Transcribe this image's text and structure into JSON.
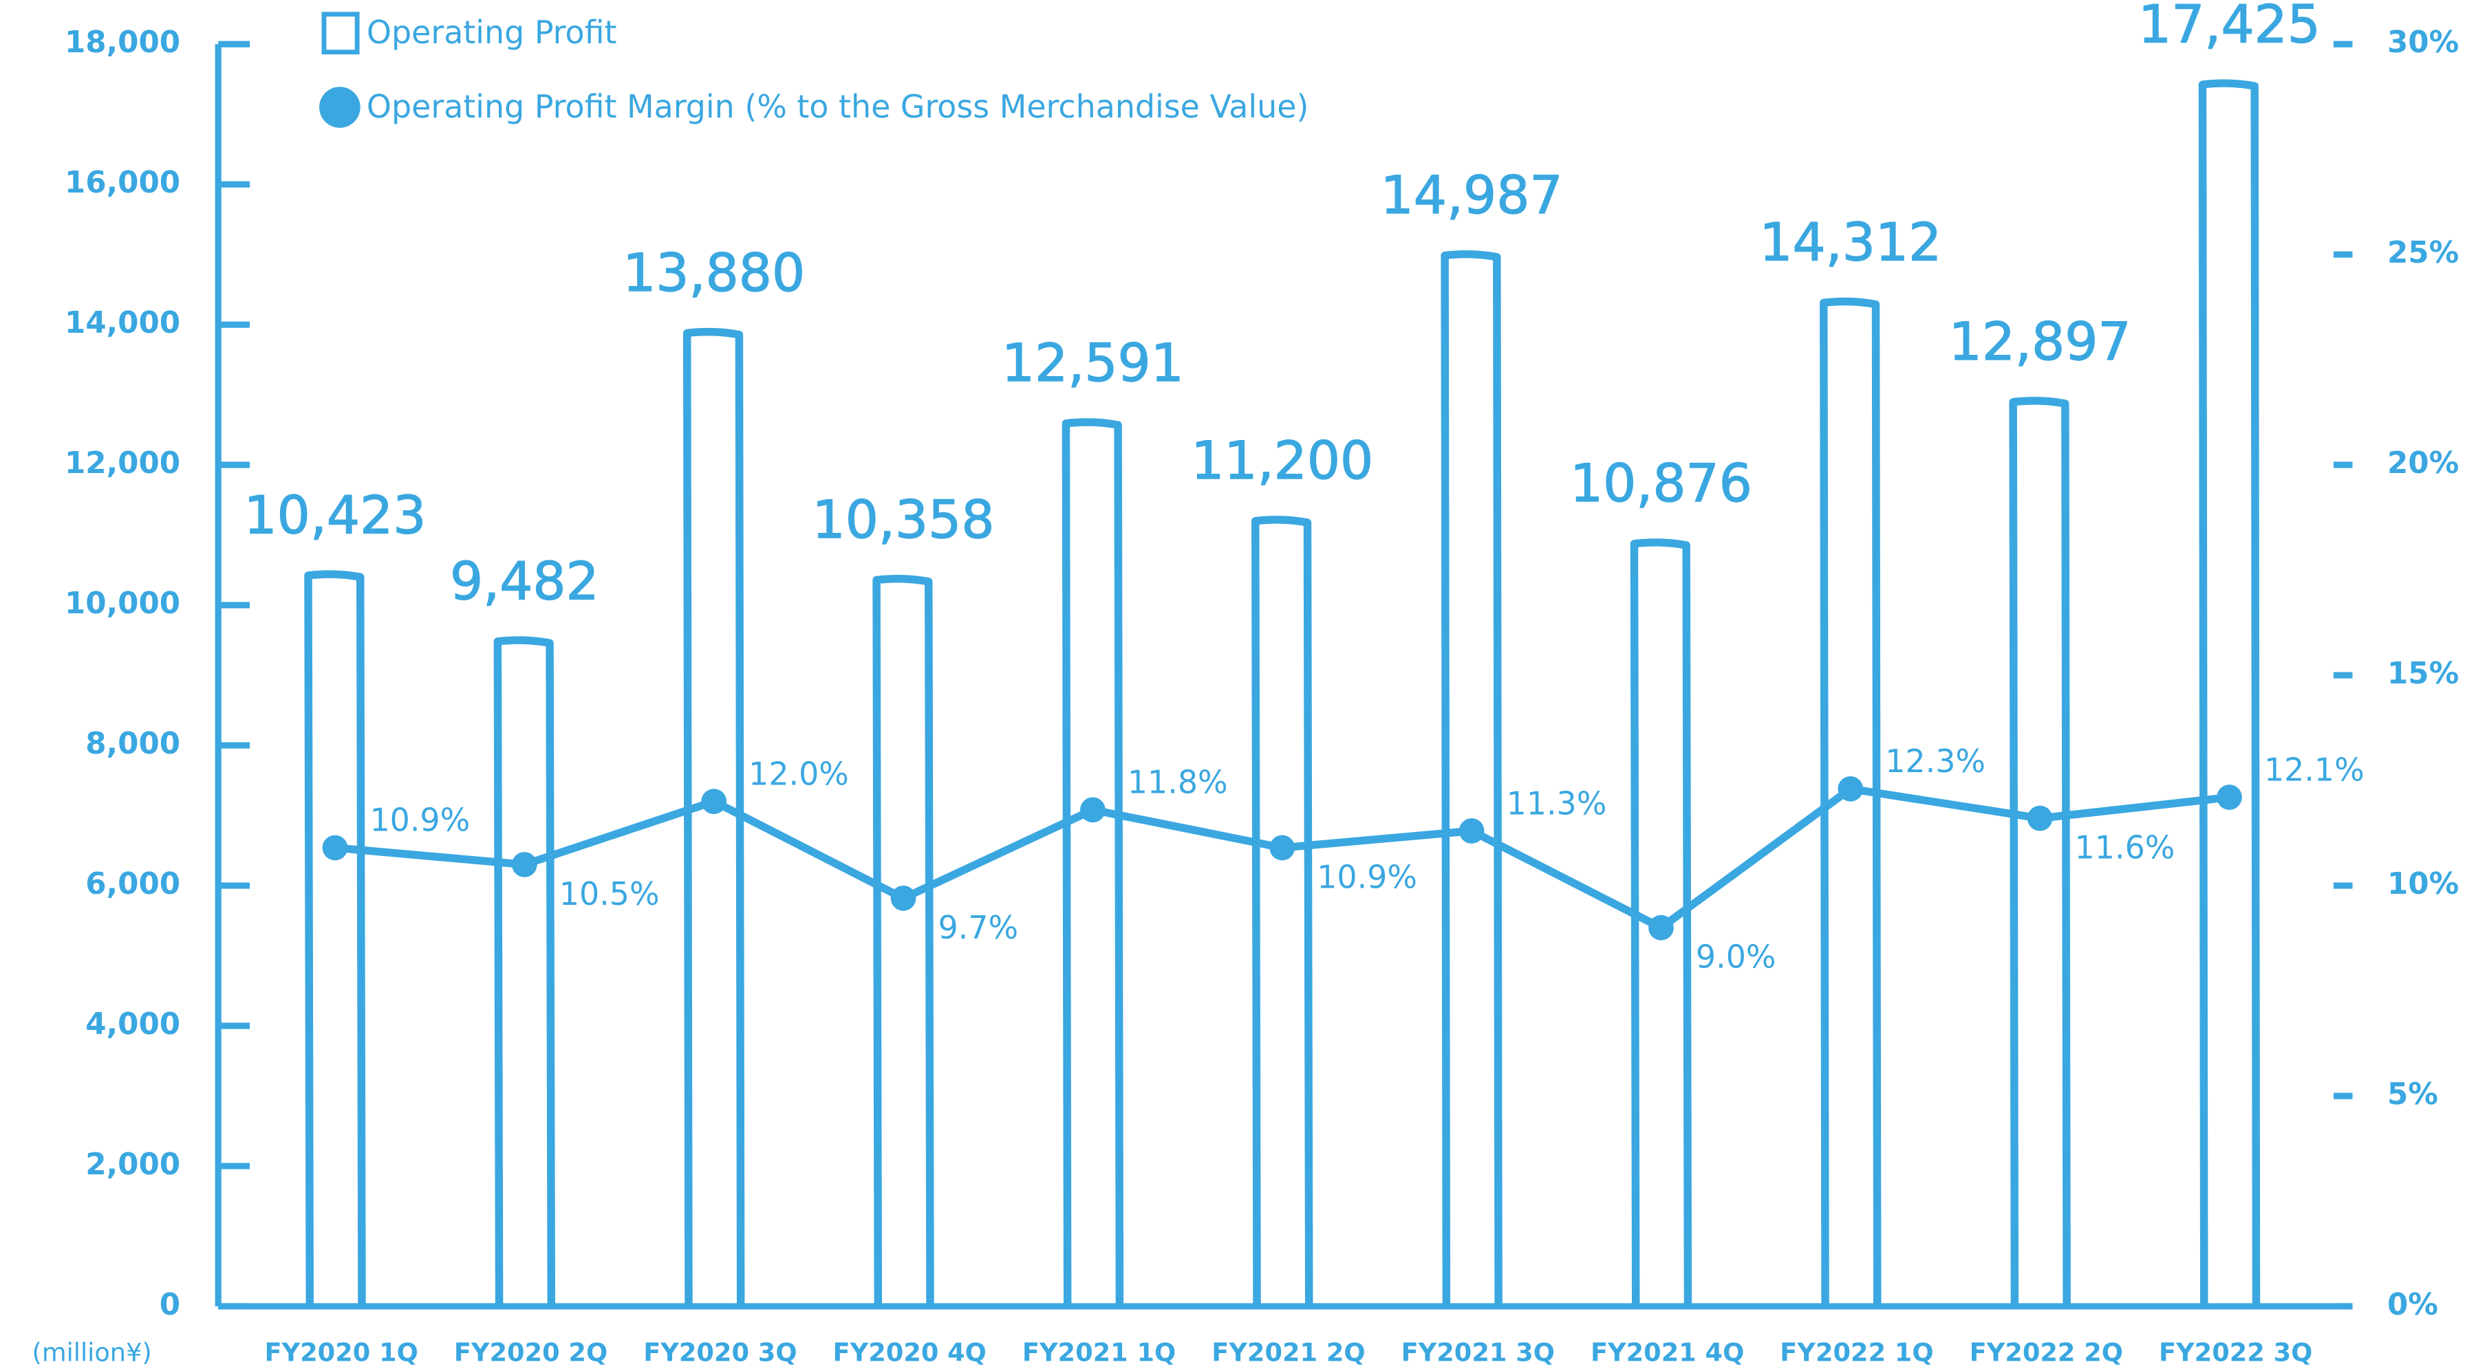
{
  "chart_data": {
    "type": "bar-line",
    "unit_label": "(million¥)",
    "categories": [
      "FY2020 1Q",
      "FY2020 2Q",
      "FY2020 3Q",
      "FY2020 4Q",
      "FY2021 1Q",
      "FY2021 2Q",
      "FY2021 3Q",
      "FY2021 4Q",
      "FY2022 1Q",
      "FY2022 2Q",
      "FY2022 3Q"
    ],
    "series": [
      {
        "name": "Operating Profit",
        "color": "#3aa7e0",
        "type": "bar",
        "values": [
          10423,
          9482,
          13880,
          10358,
          12591,
          11200,
          14987,
          10876,
          14312,
          12897,
          17425
        ],
        "value_labels": [
          "10,423",
          "9,482",
          "13,880",
          "10,358",
          "12,591",
          "11,200",
          "14,987",
          "10,876",
          "14,312",
          "12,897",
          "17,425"
        ]
      },
      {
        "name": "Operating Profit Margin (% to the Gross Merchandise Value)",
        "color": "#3aa7e0",
        "type": "line",
        "axis": "y2",
        "values": [
          10.9,
          10.5,
          12.0,
          9.7,
          11.8,
          10.9,
          11.3,
          9.0,
          12.3,
          11.6,
          12.1
        ],
        "value_labels": [
          "10.9%",
          "10.5%",
          "12.0%",
          "9.7%",
          "11.8%",
          "10.9%",
          "11.3%",
          "9.0%",
          "12.3%",
          "11.6%",
          "12.1%"
        ]
      }
    ],
    "ylim": [
      0,
      18000
    ],
    "yticks": [
      0,
      {
        "value": 2000,
        "label": "2,000"
      },
      {
        "value": 4000,
        "label": "4,000"
      },
      {
        "value": 6000,
        "label": "6,000"
      },
      {
        "value": 8000,
        "label": "8,000"
      },
      {
        "value": 10000,
        "label": "10,000"
      },
      {
        "value": 12000,
        "label": "12,000"
      },
      {
        "value": 14000,
        "label": "14,000"
      },
      {
        "value": 16000,
        "label": "16,000"
      },
      {
        "value": 18000,
        "label": "18,000"
      }
    ],
    "y2lim": [
      0,
      30
    ],
    "y2ticks": [
      {
        "value": 0,
        "label": "0%"
      },
      {
        "value": 5,
        "label": "5%"
      },
      {
        "value": 10,
        "label": "10%"
      },
      {
        "value": 15,
        "label": "15%"
      },
      {
        "value": 20,
        "label": "20%"
      },
      {
        "value": 25,
        "label": "25%"
      },
      {
        "value": 30,
        "label": "30%"
      }
    ],
    "grid": false
  }
}
